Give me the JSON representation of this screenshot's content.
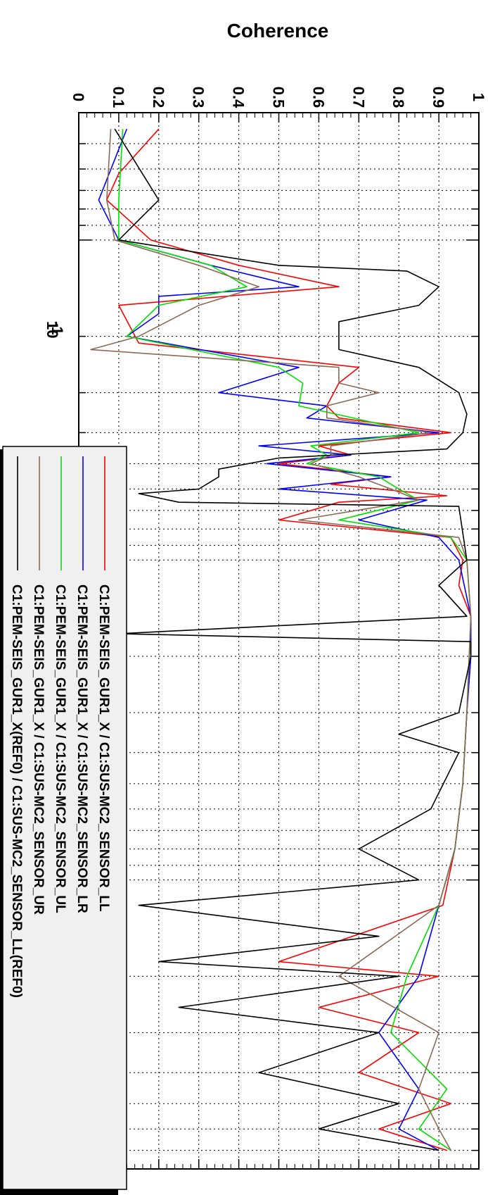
{
  "chart_data": {
    "type": "line",
    "title": "",
    "ylabel": "Coherence",
    "xlabel": "",
    "x_scale": "log",
    "x_range": [
      0.04,
      80
    ],
    "ylim": [
      0,
      1
    ],
    "yticks": [
      "0",
      "0.1",
      "0.2",
      "0.3",
      "0.4",
      "0.5",
      "0.6",
      "0.7",
      "0.8",
      "0.9",
      "1"
    ],
    "xtick_label_base": "10",
    "xtick_label_exp": "-1",
    "grid": true,
    "orientation": "rotated-90-clockwise",
    "legend_position": "bottom-left",
    "series": [
      {
        "name": "C1:PEM-SEIS_GUR1_X / C1:SUS-MC2_SENSOR_LL",
        "color": "#ff0000",
        "points": [
          [
            0.045,
            0.2
          ],
          [
            0.062,
            0.1
          ],
          [
            0.075,
            0.07
          ],
          [
            0.1,
            0.18
          ],
          [
            0.12,
            0.4
          ],
          [
            0.14,
            0.65
          ],
          [
            0.16,
            0.1
          ],
          [
            0.21,
            0.15
          ],
          [
            0.25,
            0.7
          ],
          [
            0.28,
            0.65
          ],
          [
            0.33,
            0.62
          ],
          [
            0.36,
            0.65
          ],
          [
            0.4,
            0.93
          ],
          [
            0.44,
            0.6
          ],
          [
            0.47,
            0.68
          ],
          [
            0.5,
            0.5
          ],
          [
            0.55,
            0.78
          ],
          [
            0.58,
            0.63
          ],
          [
            0.63,
            0.92
          ],
          [
            0.66,
            0.65
          ],
          [
            0.75,
            0.5
          ],
          [
            0.85,
            0.93
          ],
          [
            1.0,
            0.96
          ],
          [
            1.2,
            0.95
          ],
          [
            1.5,
            0.98
          ],
          [
            2.0,
            0.98
          ],
          [
            3.0,
            0.97
          ],
          [
            5.0,
            0.96
          ],
          [
            8.0,
            0.94
          ],
          [
            12.0,
            0.91
          ],
          [
            18.0,
            0.5
          ],
          [
            20.0,
            0.9
          ],
          [
            25.0,
            0.6
          ],
          [
            30.0,
            0.85
          ],
          [
            40.0,
            0.7
          ],
          [
            50.0,
            0.93
          ],
          [
            60.0,
            0.75
          ],
          [
            70.0,
            0.92
          ]
        ]
      },
      {
        "name": "C1:PEM-SEIS_GUR1_X / C1:SUS-MC2_SENSOR_LR",
        "color": "#0000ff",
        "points": [
          [
            0.045,
            0.12
          ],
          [
            0.075,
            0.05
          ],
          [
            0.1,
            0.1
          ],
          [
            0.12,
            0.33
          ],
          [
            0.14,
            0.55
          ],
          [
            0.15,
            0.2
          ],
          [
            0.17,
            0.2
          ],
          [
            0.2,
            0.12
          ],
          [
            0.25,
            0.55
          ],
          [
            0.3,
            0.35
          ],
          [
            0.33,
            0.62
          ],
          [
            0.36,
            0.57
          ],
          [
            0.4,
            0.9
          ],
          [
            0.44,
            0.45
          ],
          [
            0.47,
            0.68
          ],
          [
            0.5,
            0.47
          ],
          [
            0.55,
            0.78
          ],
          [
            0.6,
            0.5
          ],
          [
            0.65,
            0.87
          ],
          [
            0.75,
            0.7
          ],
          [
            0.85,
            0.9
          ],
          [
            1.0,
            0.95
          ],
          [
            1.5,
            0.98
          ],
          [
            2.0,
            0.98
          ],
          [
            3.0,
            0.97
          ],
          [
            5.0,
            0.96
          ],
          [
            8.0,
            0.94
          ],
          [
            12.0,
            0.9
          ],
          [
            20.0,
            0.85
          ],
          [
            30.0,
            0.75
          ],
          [
            45.0,
            0.85
          ],
          [
            60.0,
            0.8
          ],
          [
            70.0,
            0.9
          ]
        ]
      },
      {
        "name": "C1:PEM-SEIS_GUR1_X / C1:SUS-MC2_SENSOR_UL",
        "color": "#00e000",
        "points": [
          [
            0.045,
            0.11
          ],
          [
            0.075,
            0.1
          ],
          [
            0.1,
            0.1
          ],
          [
            0.12,
            0.33
          ],
          [
            0.14,
            0.42
          ],
          [
            0.16,
            0.2
          ],
          [
            0.2,
            0.12
          ],
          [
            0.25,
            0.5
          ],
          [
            0.28,
            0.56
          ],
          [
            0.33,
            0.55
          ],
          [
            0.4,
            0.85
          ],
          [
            0.44,
            0.58
          ],
          [
            0.47,
            0.62
          ],
          [
            0.5,
            0.57
          ],
          [
            0.55,
            0.75
          ],
          [
            0.6,
            0.8
          ],
          [
            0.65,
            0.85
          ],
          [
            0.75,
            0.65
          ],
          [
            0.85,
            0.93
          ],
          [
            1.0,
            0.97
          ],
          [
            1.5,
            0.98
          ],
          [
            3.0,
            0.97
          ],
          [
            5.0,
            0.96
          ],
          [
            8.0,
            0.94
          ],
          [
            12.0,
            0.9
          ],
          [
            20.0,
            0.82
          ],
          [
            30.0,
            0.78
          ],
          [
            45.0,
            0.92
          ],
          [
            60.0,
            0.85
          ],
          [
            70.0,
            0.93
          ]
        ]
      },
      {
        "name": "C1:PEM-SEIS_GUR1_X / C1:SUS-MC2_SENSOR_UR",
        "color": "#8b6a55",
        "points": [
          [
            0.045,
            0.08
          ],
          [
            0.075,
            0.07
          ],
          [
            0.1,
            0.09
          ],
          [
            0.12,
            0.3
          ],
          [
            0.14,
            0.45
          ],
          [
            0.16,
            0.3
          ],
          [
            0.2,
            0.15
          ],
          [
            0.22,
            0.03
          ],
          [
            0.25,
            0.65
          ],
          [
            0.28,
            0.65
          ],
          [
            0.3,
            0.75
          ],
          [
            0.33,
            0.62
          ],
          [
            0.36,
            0.62
          ],
          [
            0.4,
            0.88
          ],
          [
            0.44,
            0.63
          ],
          [
            0.47,
            0.63
          ],
          [
            0.5,
            0.58
          ],
          [
            0.55,
            0.7
          ],
          [
            0.6,
            0.78
          ],
          [
            0.65,
            0.85
          ],
          [
            0.75,
            0.55
          ],
          [
            0.85,
            0.95
          ],
          [
            1.0,
            0.97
          ],
          [
            1.5,
            0.98
          ],
          [
            3.0,
            0.97
          ],
          [
            5.0,
            0.96
          ],
          [
            8.0,
            0.94
          ],
          [
            12.0,
            0.9
          ],
          [
            20.0,
            0.65
          ],
          [
            30.0,
            0.9
          ],
          [
            45.0,
            0.85
          ],
          [
            60.0,
            0.9
          ],
          [
            70.0,
            0.93
          ]
        ]
      },
      {
        "name": "C1:PEM-SEIS_GUR1_X(REF0) / C1:SUS-MC2_SENSOR_LL(REF0)",
        "color": "#000000",
        "points": [
          [
            0.045,
            0.09
          ],
          [
            0.075,
            0.2
          ],
          [
            0.1,
            0.1
          ],
          [
            0.12,
            0.5
          ],
          [
            0.125,
            0.82
          ],
          [
            0.14,
            0.9
          ],
          [
            0.16,
            0.85
          ],
          [
            0.18,
            0.65
          ],
          [
            0.22,
            0.65
          ],
          [
            0.25,
            0.85
          ],
          [
            0.3,
            0.95
          ],
          [
            0.35,
            0.97
          ],
          [
            0.4,
            0.96
          ],
          [
            0.45,
            0.92
          ],
          [
            0.48,
            0.5
          ],
          [
            0.52,
            0.35
          ],
          [
            0.55,
            0.35
          ],
          [
            0.6,
            0.3
          ],
          [
            0.62,
            0.15
          ],
          [
            0.64,
            0.2
          ],
          [
            0.66,
            0.25
          ],
          [
            0.68,
            0.95
          ],
          [
            1.0,
            0.97
          ],
          [
            1.2,
            0.9
          ],
          [
            1.5,
            0.97
          ],
          [
            1.7,
            0.1
          ],
          [
            1.8,
            0.98
          ],
          [
            2.0,
            0.98
          ],
          [
            3.0,
            0.95
          ],
          [
            3.5,
            0.8
          ],
          [
            4.0,
            0.95
          ],
          [
            6.0,
            0.88
          ],
          [
            8.0,
            0.7
          ],
          [
            10.0,
            0.85
          ],
          [
            12.0,
            0.15
          ],
          [
            15.0,
            0.75
          ],
          [
            18.0,
            0.2
          ],
          [
            20.0,
            0.8
          ],
          [
            25.0,
            0.25
          ],
          [
            30.0,
            0.75
          ],
          [
            40.0,
            0.45
          ],
          [
            50.0,
            0.8
          ],
          [
            60.0,
            0.6
          ],
          [
            70.0,
            0.9
          ]
        ]
      }
    ]
  }
}
